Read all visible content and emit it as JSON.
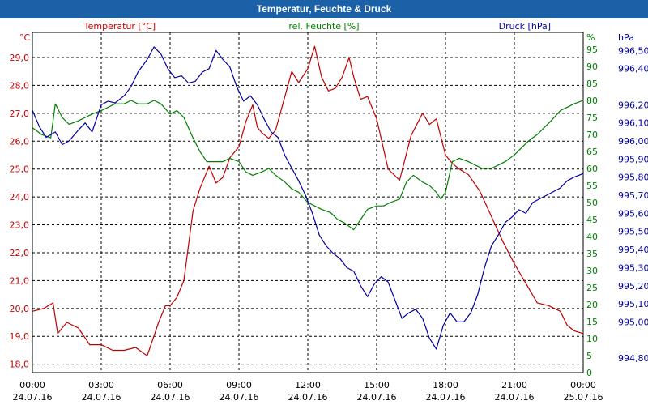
{
  "window": {
    "title": "Temperatur, Feuchte & Druck"
  },
  "chart_data": {
    "type": "line",
    "title": "Temperatur, Feuchte & Druck",
    "colors": {
      "temperature": "#c00000",
      "humidity": "#008000",
      "pressure": "#0000a0"
    },
    "grid": true,
    "x_unit": "hours since 24.07.16 00:00",
    "x_ticks": [
      {
        "time": "00:00",
        "date": "24.07.16"
      },
      {
        "time": "03:00",
        "date": "24.07.16"
      },
      {
        "time": "06:00",
        "date": "24.07.16"
      },
      {
        "time": "09:00",
        "date": "24.07.16"
      },
      {
        "time": "12:00",
        "date": "24.07.16"
      },
      {
        "time": "15:00",
        "date": "24.07.16"
      },
      {
        "time": "18:00",
        "date": "24.07.16"
      },
      {
        "time": "21:00",
        "date": "24.07.16"
      },
      {
        "time": "00:00",
        "date": "25.07.16"
      }
    ],
    "xlim": [
      0,
      24
    ],
    "axes": {
      "temperature": {
        "unit": "°C",
        "ylim": [
          17.7,
          29.9
        ],
        "ticks": [
          "18,0",
          "19,0",
          "20,0",
          "21,0",
          "22,0",
          "23,0",
          "24,0",
          "25,0",
          "26,0",
          "27,0",
          "28,0",
          "29,0"
        ]
      },
      "humidity": {
        "unit": "%",
        "ylim": [
          0,
          100
        ],
        "ticks": [
          "0",
          "5",
          "10",
          "15",
          "20",
          "25",
          "30",
          "35",
          "40",
          "45",
          "50",
          "55",
          "60",
          "65",
          "70",
          "75",
          "80",
          "85",
          "90",
          "95"
        ]
      },
      "pressure": {
        "unit": "hPa",
        "ylim": [
          994.72,
          996.6
        ],
        "ticks": [
          "994,80",
          "995,00",
          "995,10",
          "995,20",
          "995,30",
          "995,40",
          "995,50",
          "995,60",
          "995,70",
          "995,80",
          "995,90",
          "996,00",
          "996,10",
          "996,20",
          "996,40",
          "996,50"
        ]
      }
    },
    "series": [
      {
        "name": "Temperatur [°C]",
        "axis": "temperature",
        "x": [
          0,
          0.5,
          0.9,
          1.1,
          1.5,
          2,
          2.5,
          3,
          3.5,
          4,
          4.5,
          5,
          5.5,
          5.8,
          6,
          6.3,
          6.6,
          7,
          7.3,
          7.7,
          8,
          8.3,
          8.6,
          9,
          9.3,
          9.6,
          9.8,
          10,
          10.3,
          10.6,
          11,
          11.3,
          11.6,
          12,
          12.3,
          12.6,
          12.9,
          13.2,
          13.5,
          13.8,
          14,
          14.3,
          14.6,
          15,
          15.5,
          16,
          16.5,
          17,
          17.3,
          17.6,
          18,
          18.3,
          18.6,
          19,
          19.5,
          20,
          20.5,
          21,
          21.5,
          22,
          22.5,
          23,
          23.3,
          23.6,
          24
        ],
        "values": [
          19.9,
          20,
          20.2,
          19.1,
          19.5,
          19.3,
          18.7,
          18.7,
          18.5,
          18.5,
          18.6,
          18.3,
          19.5,
          20.1,
          20.1,
          20.4,
          21,
          23.5,
          24.3,
          25.1,
          24.5,
          24.7,
          25.4,
          25.8,
          26.7,
          27.3,
          26.5,
          26.3,
          26.1,
          26.4,
          27.6,
          28.5,
          28.1,
          28.6,
          29.4,
          28.3,
          27.8,
          27.9,
          28.3,
          29,
          28.3,
          27.5,
          27.6,
          26.8,
          25,
          24.6,
          26.2,
          27,
          26.6,
          26.8,
          25.5,
          25.2,
          25,
          24.8,
          24.2,
          23.3,
          22.4,
          21.6,
          20.9,
          20.2,
          20.1,
          19.9,
          19.4,
          19.2,
          19.1
        ]
      },
      {
        "name": "rel. Feuchte [%]",
        "axis": "humidity",
        "x": [
          0,
          0.4,
          0.8,
          1,
          1.3,
          1.6,
          2,
          2.3,
          2.6,
          3,
          3.3,
          3.6,
          4,
          4.3,
          4.6,
          5,
          5.3,
          5.6,
          6,
          6.3,
          6.6,
          7,
          7.3,
          7.6,
          8,
          8.3,
          8.6,
          9,
          9.3,
          9.6,
          10,
          10.3,
          10.6,
          11,
          11.3,
          11.6,
          12,
          12.3,
          12.6,
          13,
          13.3,
          13.6,
          14,
          14.3,
          14.6,
          15,
          15.3,
          15.6,
          16,
          16.3,
          16.6,
          17,
          17.3,
          17.6,
          17.8,
          18,
          18.3,
          18.6,
          19,
          19.3,
          19.6,
          20,
          20.3,
          20.6,
          21,
          21.3,
          21.6,
          22,
          22.3,
          22.6,
          23,
          23.3,
          23.6,
          24
        ],
        "values": [
          72,
          70,
          69,
          79,
          75,
          73,
          74,
          75,
          76,
          77,
          78,
          79,
          79,
          80,
          79,
          79,
          80,
          79,
          76,
          77,
          75,
          69,
          65,
          62,
          62,
          62,
          63,
          62,
          59,
          58,
          59,
          60,
          58,
          56,
          54,
          53,
          50,
          49,
          48,
          47,
          45,
          44,
          42,
          45,
          48,
          49,
          49,
          50,
          51,
          56,
          58,
          56,
          55,
          53,
          51,
          53,
          62,
          63,
          62,
          61,
          60,
          60,
          61,
          62,
          64,
          66,
          68,
          70,
          72,
          74,
          77,
          78,
          79,
          80
        ]
      },
      {
        "name": "Druck [hPa]",
        "axis": "pressure",
        "x": [
          0,
          0.3,
          0.6,
          1,
          1.3,
          1.6,
          2,
          2.3,
          2.6,
          3,
          3.3,
          3.6,
          4,
          4.3,
          4.6,
          5,
          5.3,
          5.6,
          5.9,
          6.2,
          6.5,
          6.8,
          7.1,
          7.4,
          7.7,
          8,
          8.3,
          8.6,
          8.9,
          9.2,
          9.5,
          9.8,
          10.1,
          10.4,
          10.7,
          11,
          11.3,
          11.6,
          11.9,
          12.2,
          12.5,
          12.8,
          13.1,
          13.4,
          13.7,
          14,
          14.3,
          14.6,
          14.9,
          15.2,
          15.5,
          15.8,
          16.1,
          16.4,
          16.7,
          17,
          17.3,
          17.6,
          17.9,
          18.2,
          18.5,
          18.8,
          19.1,
          19.4,
          19.7,
          20,
          20.3,
          20.6,
          20.9,
          21.2,
          21.5,
          21.8,
          22.1,
          22.4,
          22.7,
          23,
          23.3,
          23.6,
          24
        ],
        "values": [
          996.17,
          996.08,
          996.02,
          996.05,
          995.98,
          996,
          996.06,
          996.1,
          996.05,
          996.2,
          996.22,
          996.21,
          996.25,
          996.3,
          996.38,
          996.45,
          996.52,
          996.48,
          996.4,
          996.35,
          996.36,
          996.32,
          996.33,
          996.38,
          996.4,
          996.5,
          996.45,
          996.41,
          996.3,
          996.22,
          996.25,
          996.2,
          996.12,
          996.05,
          996.02,
          995.92,
          995.85,
          995.78,
          995.7,
          995.6,
          995.48,
          995.42,
          995.38,
          995.35,
          995.3,
          995.28,
          995.2,
          995.14,
          995.21,
          995.25,
          995.22,
          995.12,
          995.02,
          995.05,
          995.07,
          995.02,
          994.91,
          994.85,
          994.98,
          995.05,
          995.0,
          995.0,
          995.05,
          995.15,
          995.3,
          995.42,
          995.48,
          995.55,
          995.58,
          995.62,
          995.6,
          995.66,
          995.68,
          995.7,
          995.72,
          995.74,
          995.78,
          995.8,
          995.82
        ]
      }
    ]
  }
}
